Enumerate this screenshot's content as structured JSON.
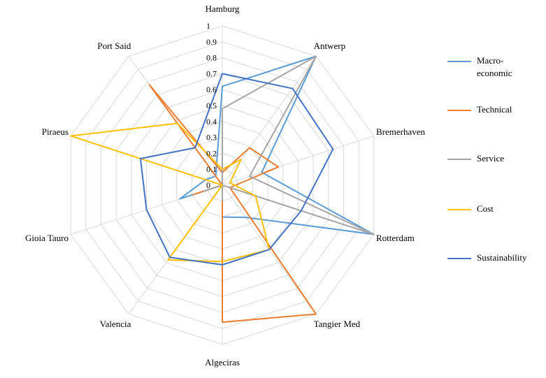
{
  "chart_data": {
    "type": "radar",
    "title": "",
    "rlim": [
      0,
      1
    ],
    "r_ticks": [
      "0",
      "0.1",
      "0.2",
      "0.3",
      "0.4",
      "0.5",
      "0.6",
      "0.7",
      "0.8",
      "0.9",
      "1"
    ],
    "tick_values": [
      0,
      0.1,
      0.2,
      0.3,
      0.4,
      0.5,
      0.6,
      0.7,
      0.8,
      0.9,
      1
    ],
    "categories": [
      "Hamburg",
      "Antwerp",
      "Bremerhaven",
      "Rotterdam",
      "Tangier Med",
      "Algeciras",
      "Valencia",
      "Gioia Tauro",
      "Piraeus",
      "Port Said"
    ],
    "grid": true,
    "legend_position": "right",
    "series": [
      {
        "name": "Macro-economic",
        "color": "#5b9bd5",
        "values": [
          0.62,
          1.0,
          0.26,
          1.0,
          0.25,
          0.2,
          0.0,
          0.28,
          0.11,
          0.07
        ]
      },
      {
        "name": "Technical",
        "color": "#ed7d31",
        "values": [
          0.08,
          0.29,
          0.37,
          0.05,
          1.0,
          0.86,
          0.0,
          0.19,
          0.0,
          0.78
        ]
      },
      {
        "name": "Service",
        "color": "#a5a5a5",
        "values": [
          0.48,
          1.0,
          0.18,
          1.0,
          0.0,
          0.1,
          0.0,
          0.12,
          0.0,
          0.0
        ]
      },
      {
        "name": "Cost",
        "color": "#ffc000",
        "values": [
          0.1,
          0.2,
          0.05,
          0.22,
          0.5,
          0.48,
          0.58,
          0.0,
          1.0,
          0.48
        ]
      },
      {
        "name": "Sustainability",
        "color": "#4472c4",
        "values": [
          0.7,
          0.75,
          0.73,
          0.52,
          0.5,
          0.5,
          0.56,
          0.5,
          0.54,
          0.29
        ]
      }
    ]
  }
}
